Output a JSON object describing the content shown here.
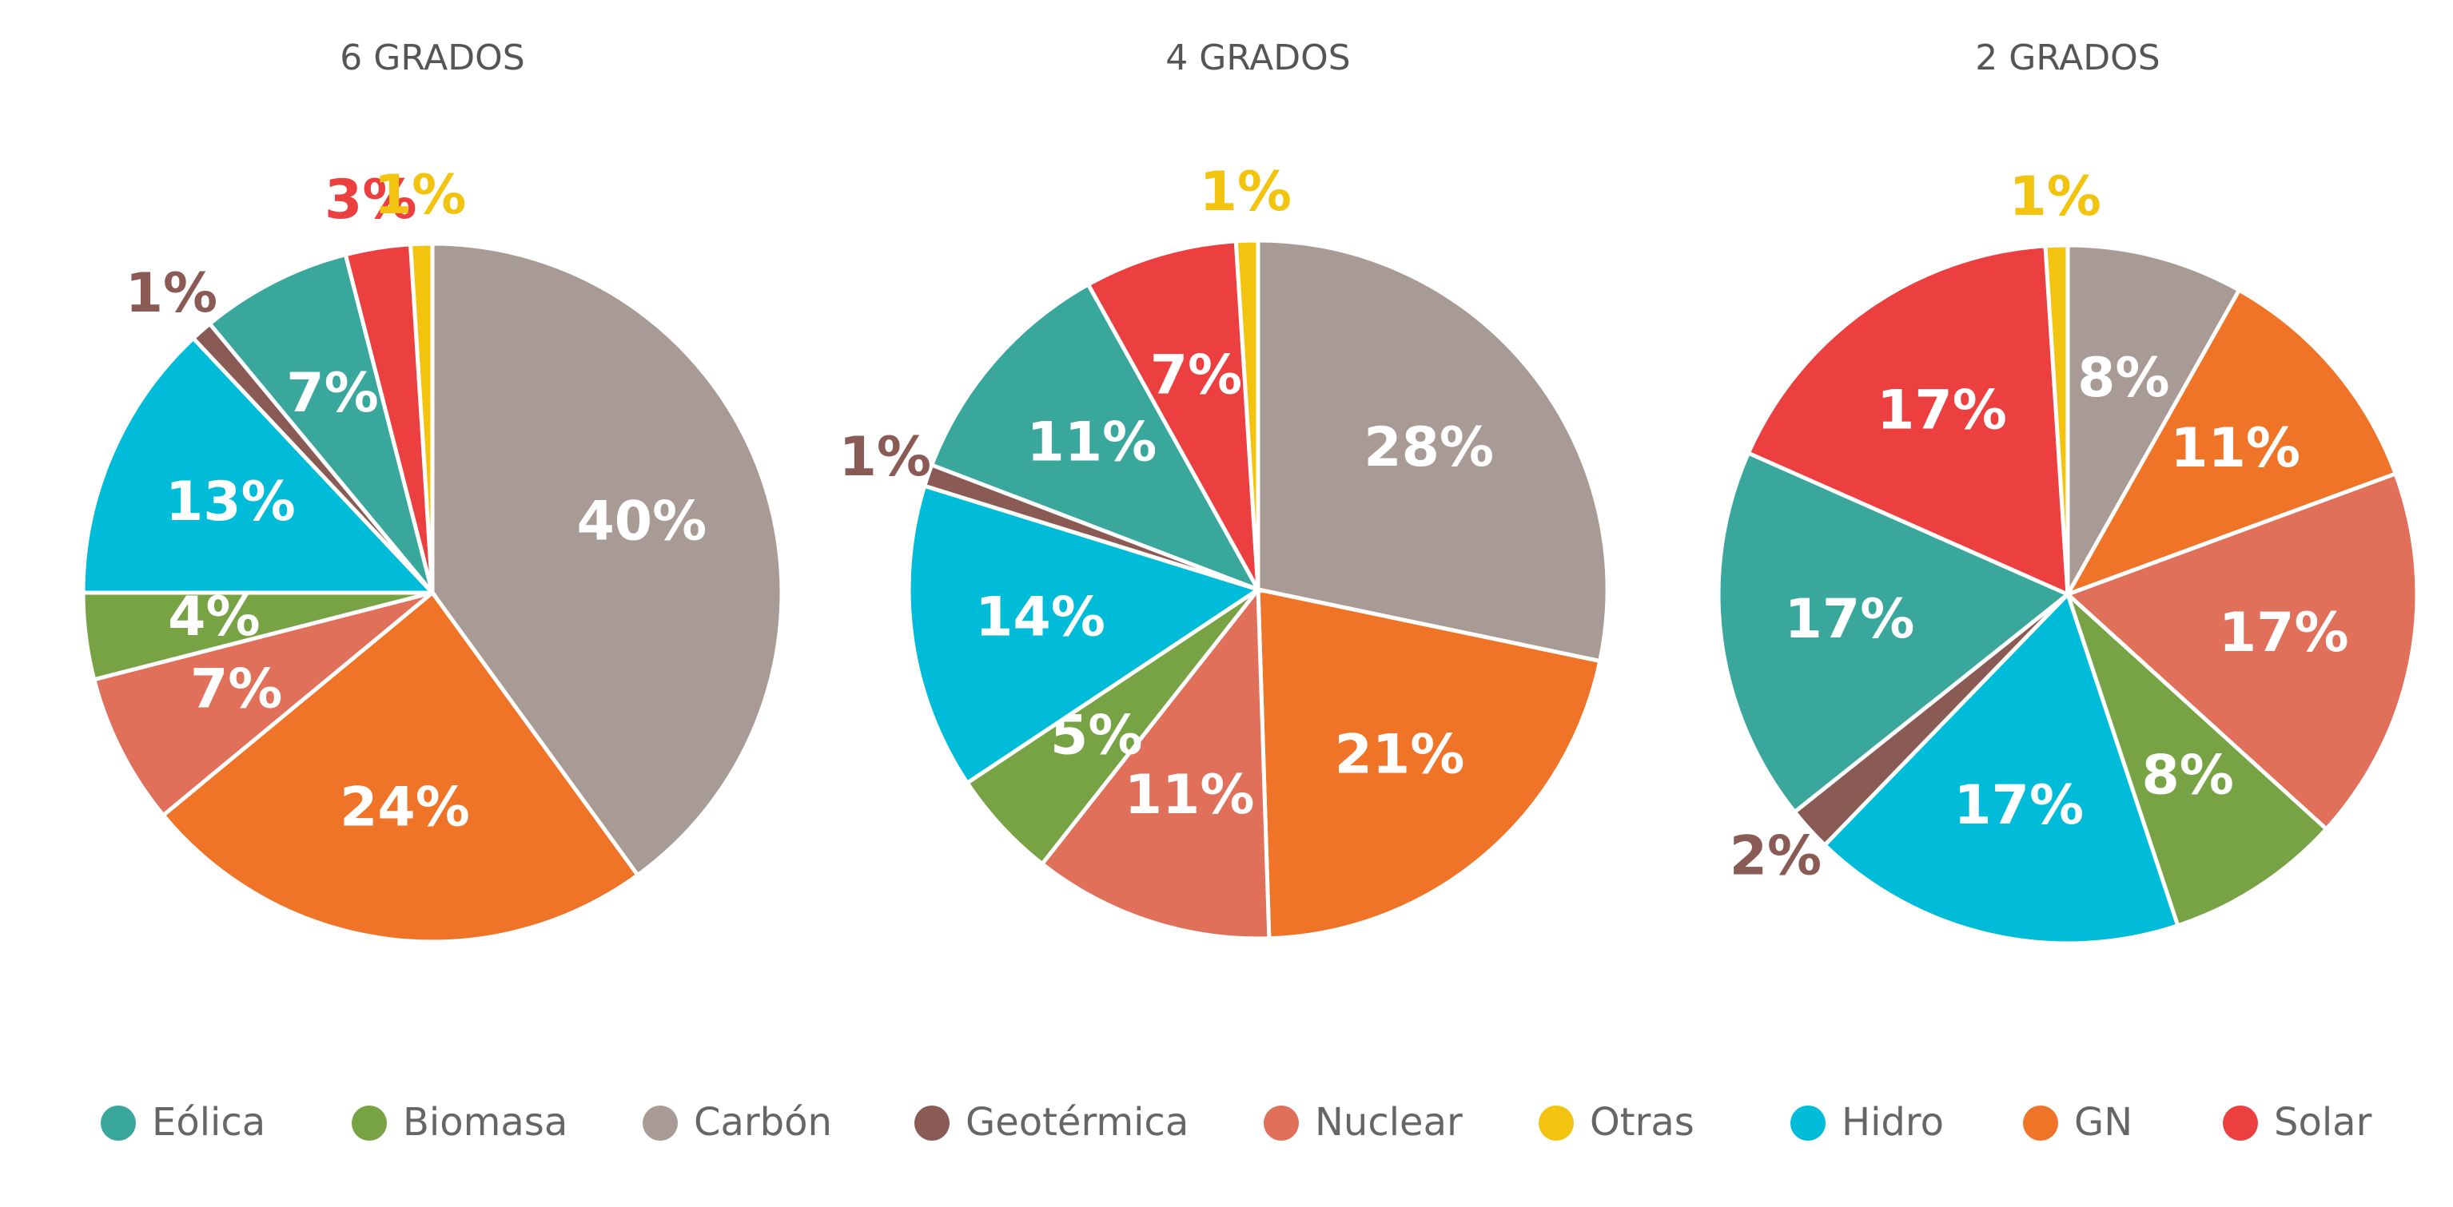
{
  "chart_data": [
    {
      "type": "pie",
      "title": "6 GRADOS",
      "categories": [
        "Carbón",
        "GN",
        "Nuclear",
        "Biomasa",
        "Hidro",
        "Geotérmica",
        "Eólica",
        "Solar",
        "Otras"
      ],
      "values": [
        40,
        24,
        7,
        4,
        13,
        1,
        7,
        3,
        1
      ],
      "value_labels": [
        "40%",
        "24%",
        "7%",
        "4%",
        "13%",
        "1%",
        "7%",
        "3%",
        "1%"
      ],
      "colors": [
        "#a89a94",
        "#f07427",
        "#e0705a",
        "#77a344",
        "#00bcd8",
        "#8a5a55",
        "#3aa79d",
        "#ec4040",
        "#f2c40f"
      ]
    },
    {
      "type": "pie",
      "title": "4 GRADOS",
      "categories": [
        "Carbón",
        "GN",
        "Nuclear",
        "Biomasa",
        "Hidro",
        "Geotérmica",
        "Eólica",
        "Solar",
        "Otras"
      ],
      "values": [
        28,
        21,
        11,
        5,
        14,
        1,
        11,
        7,
        1
      ],
      "value_labels": [
        "28%",
        "21%",
        "11%",
        "5%",
        "14%",
        "1%",
        "11%",
        "7%",
        "1%"
      ],
      "colors": [
        "#a89a94",
        "#f07427",
        "#e0705a",
        "#77a344",
        "#00bcd8",
        "#8a5a55",
        "#3aa79d",
        "#ec4040",
        "#f2c40f"
      ]
    },
    {
      "type": "pie",
      "title": "2 GRADOS",
      "categories": [
        "Carbón",
        "GN",
        "Nuclear",
        "Biomasa",
        "Hidro",
        "Geotérmica",
        "Eólica",
        "Solar",
        "Otras"
      ],
      "values": [
        8,
        11,
        17,
        8,
        17,
        2,
        17,
        17,
        1
      ],
      "value_labels": [
        "8%",
        "11%",
        "17%",
        "8%",
        "17%",
        "2%",
        "17%",
        "17%",
        "1%"
      ],
      "colors": [
        "#a89a94",
        "#f07427",
        "#e0705a",
        "#77a344",
        "#00bcd8",
        "#8a5a55",
        "#3aa79d",
        "#ec4040",
        "#f2c40f"
      ]
    }
  ],
  "legend": {
    "labels": [
      "Eólica",
      "Biomasa",
      "Carbón",
      "Geotérmica",
      "Nuclear",
      "Otras",
      "Hidro",
      "GN",
      "Solar"
    ],
    "colors": [
      "#3aa79d",
      "#77a344",
      "#a89a94",
      "#8a5a55",
      "#e0705a",
      "#f2c40f",
      "#00bcd8",
      "#f07427",
      "#ec4040"
    ]
  }
}
